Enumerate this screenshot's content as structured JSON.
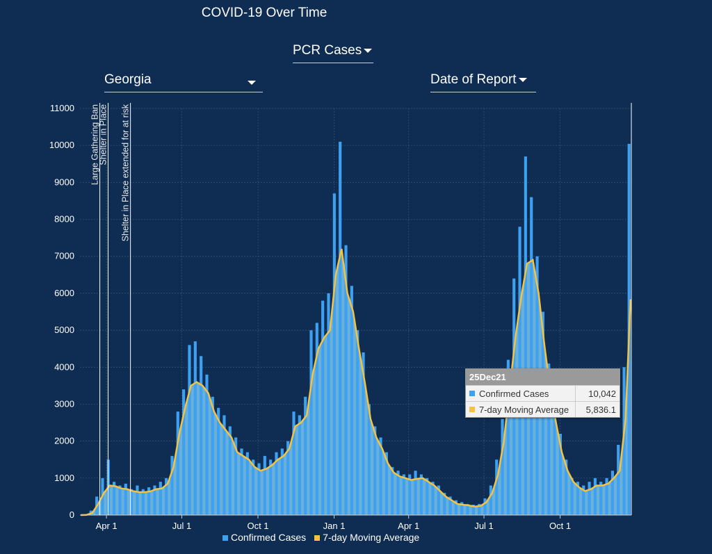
{
  "title": "COVID-19 Over Time",
  "metric_dropdown": {
    "value": "PCR Cases"
  },
  "region_dropdown": {
    "value": "Georgia"
  },
  "date_dropdown": {
    "value": "Date of Report"
  },
  "colors": {
    "bars": "#3ea0f0",
    "area": "#6ab0d8",
    "average": "#f5c242",
    "background": "#0f2d52"
  },
  "tooltip": {
    "date": "25Dec21",
    "rows": [
      {
        "label": "Confirmed Cases",
        "value": "10,042"
      },
      {
        "label": "7-day Moving Average",
        "value": "5,836.1"
      }
    ]
  },
  "legend": [
    "Confirmed Cases",
    "7-day Moving Average"
  ],
  "chart_data": {
    "type": "bar",
    "ylim": [
      0,
      11000
    ],
    "yticks": [
      0,
      1000,
      2000,
      3000,
      4000,
      5000,
      6000,
      7000,
      8000,
      9000,
      10000,
      11000
    ],
    "xticks": [
      {
        "date": "2020-04-01",
        "label": "Apr 1"
      },
      {
        "date": "2020-07-01",
        "label": "Jul 1"
      },
      {
        "date": "2020-10-01",
        "label": "Oct 1"
      },
      {
        "date": "2021-01-01",
        "label": "Jan 1"
      },
      {
        "date": "2021-04-01",
        "label": "Apr 1"
      },
      {
        "date": "2021-07-01",
        "label": "Jul 1"
      },
      {
        "date": "2021-10-01",
        "label": "Oct 1"
      }
    ],
    "xlim": [
      "2020-02-29",
      "2021-12-26"
    ],
    "grid": true,
    "legend_position": "bottom",
    "annotations": [
      {
        "date": "2020-03-24",
        "label": "Large Gathering Ban"
      },
      {
        "date": "2020-04-03",
        "label": "Shelter in Place"
      },
      {
        "date": "2020-04-30",
        "label": "Shelter in Place extended for at risk"
      }
    ],
    "x": [
      "2020-03-01",
      "2020-03-08",
      "2020-03-15",
      "2020-03-22",
      "2020-03-29",
      "2020-04-05",
      "2020-04-12",
      "2020-04-19",
      "2020-04-26",
      "2020-05-03",
      "2020-05-10",
      "2020-05-17",
      "2020-05-24",
      "2020-05-31",
      "2020-06-07",
      "2020-06-14",
      "2020-06-21",
      "2020-06-28",
      "2020-07-05",
      "2020-07-12",
      "2020-07-19",
      "2020-07-26",
      "2020-08-02",
      "2020-08-09",
      "2020-08-16",
      "2020-08-23",
      "2020-08-30",
      "2020-09-06",
      "2020-09-13",
      "2020-09-20",
      "2020-09-27",
      "2020-10-04",
      "2020-10-11",
      "2020-10-18",
      "2020-10-25",
      "2020-11-01",
      "2020-11-08",
      "2020-11-15",
      "2020-11-22",
      "2020-11-29",
      "2020-12-06",
      "2020-12-13",
      "2020-12-20",
      "2020-12-27",
      "2021-01-03",
      "2021-01-10",
      "2021-01-17",
      "2021-01-24",
      "2021-01-31",
      "2021-02-07",
      "2021-02-14",
      "2021-02-21",
      "2021-02-28",
      "2021-03-07",
      "2021-03-14",
      "2021-03-21",
      "2021-03-28",
      "2021-04-04",
      "2021-04-11",
      "2021-04-18",
      "2021-04-25",
      "2021-05-02",
      "2021-05-09",
      "2021-05-16",
      "2021-05-23",
      "2021-05-30",
      "2021-06-06",
      "2021-06-13",
      "2021-06-20",
      "2021-06-27",
      "2021-07-04",
      "2021-07-11",
      "2021-07-18",
      "2021-07-25",
      "2021-08-01",
      "2021-08-08",
      "2021-08-15",
      "2021-08-22",
      "2021-08-29",
      "2021-09-05",
      "2021-09-12",
      "2021-09-19",
      "2021-09-26",
      "2021-10-03",
      "2021-10-10",
      "2021-10-17",
      "2021-10-24",
      "2021-10-31",
      "2021-11-07",
      "2021-11-14",
      "2021-11-21",
      "2021-11-28",
      "2021-12-05",
      "2021-12-12",
      "2021-12-19",
      "2021-12-25"
    ],
    "series": [
      {
        "name": "Confirmed Cases",
        "values": [
          0,
          10,
          120,
          500,
          1000,
          1500,
          900,
          800,
          850,
          700,
          800,
          700,
          750,
          800,
          900,
          1000,
          1600,
          2800,
          3400,
          4600,
          4700,
          4300,
          3800,
          3200,
          2900,
          2700,
          2400,
          2100,
          1800,
          1700,
          1500,
          1400,
          1600,
          1500,
          1700,
          1800,
          2000,
          2800,
          2700,
          3200,
          5000,
          5200,
          5800,
          6000,
          8700,
          10100,
          7300,
          6200,
          5000,
          4400,
          3000,
          2400,
          2100,
          1700,
          1300,
          1200,
          1100,
          1100,
          1200,
          1100,
          1000,
          900,
          800,
          600,
          500,
          400,
          350,
          300,
          280,
          300,
          450,
          800,
          1500,
          2600,
          4200,
          6400,
          7800,
          9700,
          8600,
          7000,
          5500,
          4100,
          3000,
          2200,
          1500,
          1000,
          900,
          800,
          900,
          1000,
          900,
          1000,
          1200,
          1900,
          4000,
          10042
        ]
      },
      {
        "name": "7-day Moving Average",
        "values": [
          0,
          5,
          60,
          300,
          600,
          800,
          780,
          720,
          700,
          650,
          620,
          620,
          640,
          700,
          720,
          850,
          1300,
          2200,
          2900,
          3500,
          3600,
          3500,
          3300,
          2800,
          2500,
          2300,
          2100,
          1700,
          1600,
          1500,
          1300,
          1200,
          1250,
          1350,
          1500,
          1600,
          1800,
          2400,
          2500,
          2700,
          3800,
          4500,
          4800,
          5000,
          6500,
          7200,
          6000,
          5500,
          4500,
          3600,
          2600,
          2100,
          1800,
          1400,
          1150,
          1050,
          1000,
          950,
          980,
          1000,
          900,
          800,
          650,
          500,
          400,
          300,
          280,
          260,
          230,
          250,
          350,
          600,
          1100,
          2000,
          3400,
          4800,
          5900,
          6800,
          6900,
          6000,
          4600,
          3400,
          2500,
          1700,
          1200,
          900,
          750,
          650,
          700,
          800,
          800,
          850,
          1000,
          1200,
          2600,
          5836.1
        ]
      }
    ]
  }
}
